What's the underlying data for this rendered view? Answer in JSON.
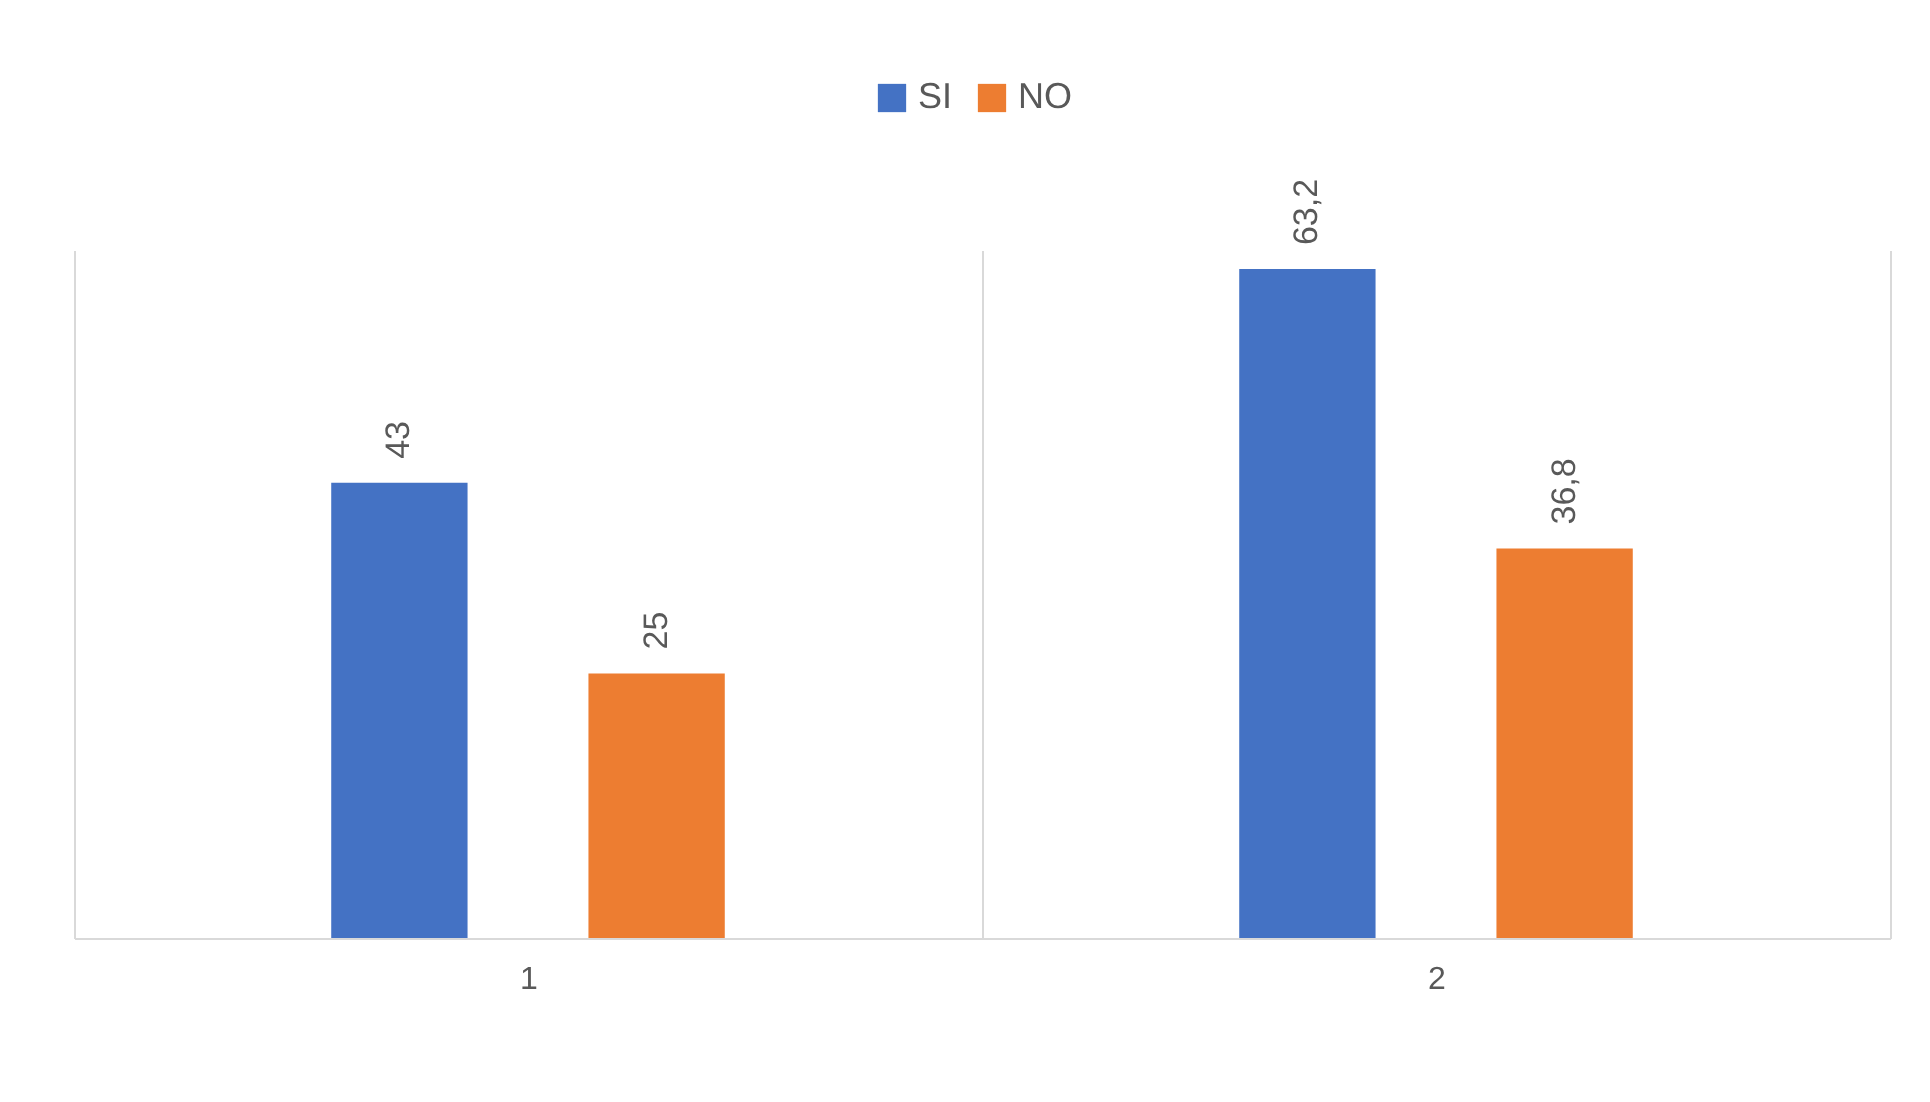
{
  "chart_data": {
    "type": "bar",
    "categories": [
      "1",
      "2"
    ],
    "series": [
      {
        "name": "SI",
        "color": "#4472c4",
        "values": [
          43,
          63.2
        ],
        "value_labels": [
          "43",
          "63,2"
        ]
      },
      {
        "name": "NO",
        "color": "#ed7d31",
        "values": [
          25,
          36.8
        ],
        "value_labels": [
          "25",
          "36,8"
        ]
      }
    ],
    "grid": "x",
    "legend": "top"
  }
}
